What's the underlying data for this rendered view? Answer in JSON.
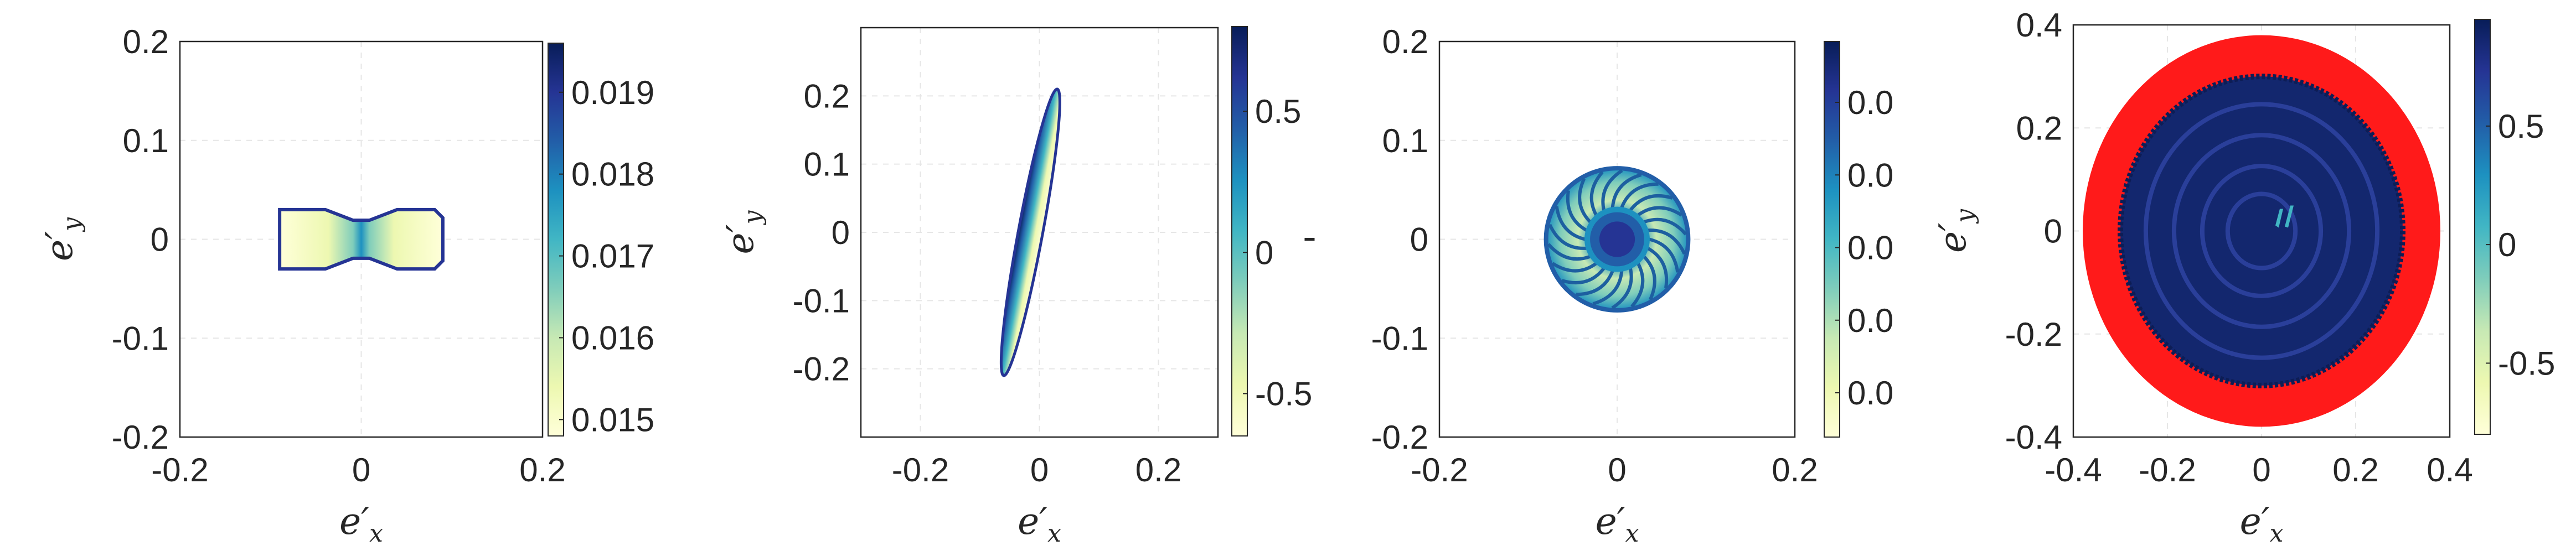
{
  "chart_data": [
    {
      "type": "heatmap",
      "title": "",
      "xlabel": "e'x",
      "ylabel": "e'y",
      "xlim": [
        -0.2,
        0.2
      ],
      "ylim": [
        -0.2,
        0.2
      ],
      "xticks": [
        "-0.2",
        "0",
        "0.2"
      ],
      "yticks": [
        "0.2",
        "0.1",
        "0",
        "-0.1",
        "-0.2"
      ],
      "grid": true,
      "colorbar": {
        "ticks": [
          "0.019",
          "0.018",
          "0.017",
          "0.016",
          "0.015"
        ],
        "range": [
          0.0148,
          0.0196
        ]
      },
      "region": {
        "shape": "bowtie",
        "x_range": [
          -0.09,
          0.09
        ],
        "y_range": [
          -0.03,
          0.03
        ]
      }
    },
    {
      "type": "heatmap",
      "title": "",
      "xlabel": "e'x",
      "ylabel": "e'y",
      "xlim": [
        -0.3,
        0.3
      ],
      "ylim": [
        -0.3,
        0.3
      ],
      "xticks": [
        "-0.2",
        "0",
        "0.2"
      ],
      "yticks": [
        "0.2",
        "0.1",
        "0",
        "-0.1",
        "-0.2"
      ],
      "grid": true,
      "colorbar": {
        "ticks": [
          "0.5",
          "0",
          "-0.5"
        ],
        "range": [
          -0.65,
          0.8
        ]
      },
      "region": {
        "shape": "tilted-ellipse",
        "endpoints": [
          [
            -0.06,
            -0.21
          ],
          [
            0.03,
            0.21
          ]
        ]
      }
    },
    {
      "type": "heatmap",
      "title": "",
      "xlabel": "e'x",
      "ylabel": "'",
      "xlim": [
        -0.2,
        0.2
      ],
      "ylim": [
        -0.2,
        0.2
      ],
      "xticks": [
        "-0.2",
        "0",
        "0.2"
      ],
      "yticks": [
        "0.2",
        "0.1",
        "0",
        "-0.1",
        "-0.2"
      ],
      "grid": true,
      "colorbar": {
        "ticks": [
          "0.0",
          "0.0",
          "0.0",
          "0.0",
          "0.0"
        ],
        "range": [
          0,
          1
        ]
      },
      "region": {
        "shape": "disk-spiral",
        "center": [
          0,
          0
        ],
        "radius": 0.08
      }
    },
    {
      "type": "heatmap",
      "title": "",
      "xlabel": "e'x",
      "ylabel": "e'y",
      "xlim": [
        -0.4,
        0.4
      ],
      "ylim": [
        -0.4,
        0.4
      ],
      "xticks": [
        "-0.4",
        "-0.2",
        "0",
        "0.2",
        "0.4"
      ],
      "yticks": [
        "0.4",
        "0.2",
        "0",
        "-0.2",
        "-0.4"
      ],
      "grid": true,
      "colorbar": {
        "ticks": [
          "0.5",
          "0",
          "-0.5"
        ],
        "range": [
          -0.8,
          0.95
        ]
      },
      "region": {
        "shape": "disk-with-ring",
        "center": [
          0,
          0
        ],
        "outer_radius": 0.38,
        "inner_radius": 0.3,
        "ring_color": "#ff1a1a"
      }
    }
  ],
  "colormap": [
    "#ffffd9",
    "#edf8b1",
    "#c7e9b4",
    "#7fcdbb",
    "#41b6c4",
    "#1d91c0",
    "#225ea8",
    "#253494",
    "#081d58"
  ]
}
